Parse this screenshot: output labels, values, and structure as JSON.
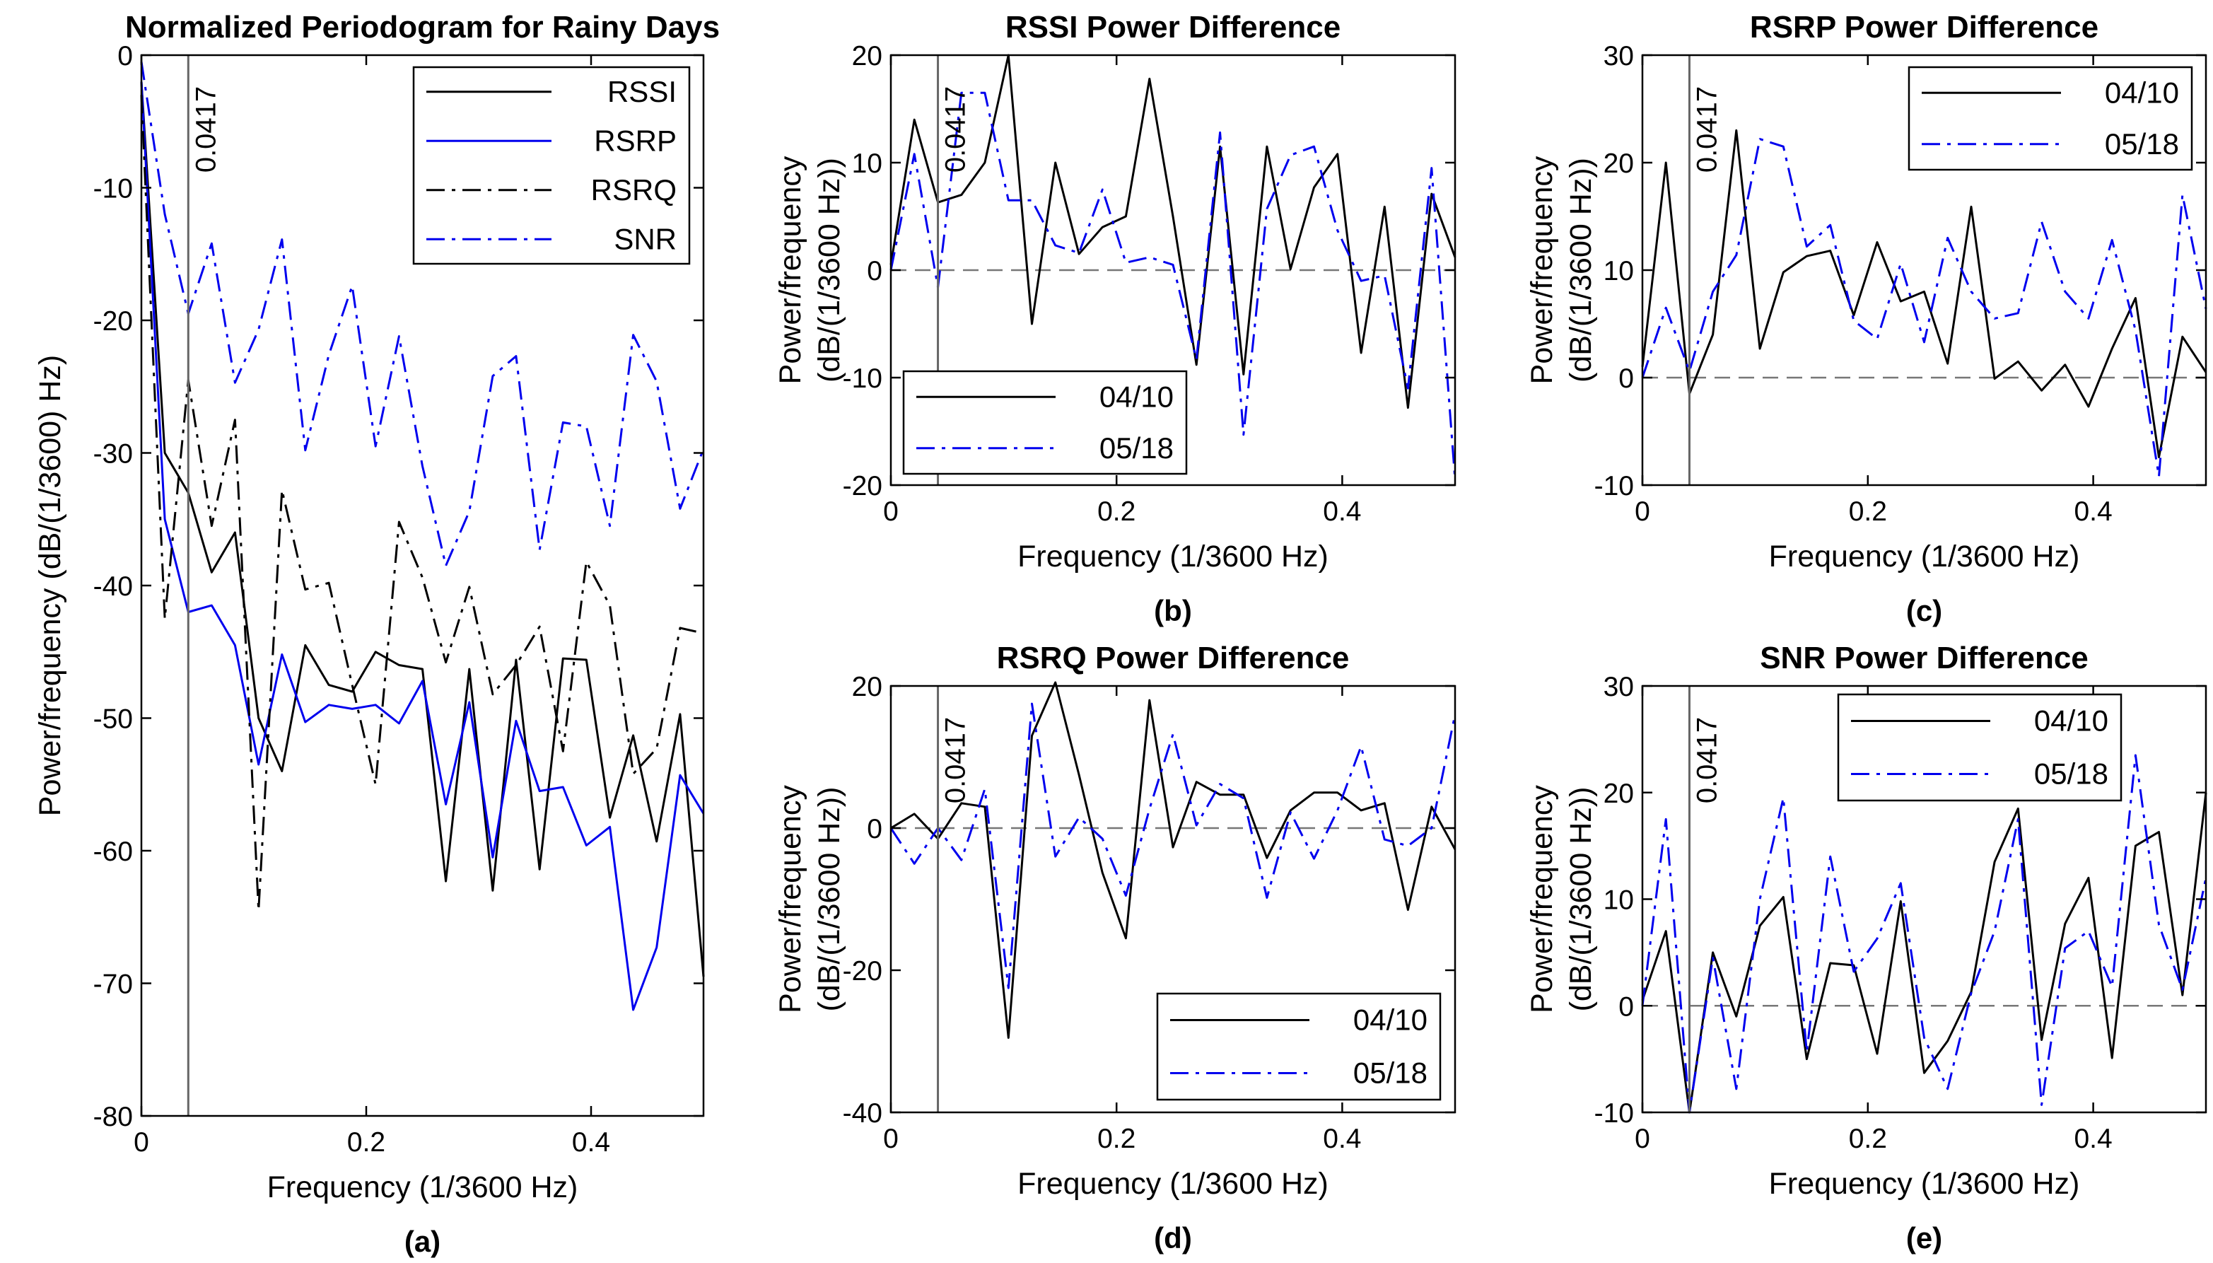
{
  "chart_data": [
    {
      "id": "a",
      "type": "line",
      "title": "Normalized Periodogram for Rainy Days",
      "caption": "(a)",
      "xlabel": "Frequency (1/3600 Hz)",
      "ylabel": "Power/frequency (dB/(1/3600) Hz)",
      "xlim": [
        0,
        0.5
      ],
      "ylim": [
        -80,
        0
      ],
      "xticks": [
        0,
        0.2,
        0.4
      ],
      "yticks": [
        0,
        -10,
        -20,
        -30,
        -40,
        -50,
        -60,
        -70,
        -80
      ],
      "vline": 0.0417,
      "vline_label": "0.0417",
      "zero_line": false,
      "legend": "top-right",
      "x": [
        0,
        0.0208,
        0.0417,
        0.0625,
        0.0833,
        0.1042,
        0.125,
        0.1458,
        0.1667,
        0.1875,
        0.2083,
        0.2292,
        0.25,
        0.2708,
        0.2917,
        0.3125,
        0.3333,
        0.3542,
        0.375,
        0.3958,
        0.4167,
        0.4375,
        0.4583,
        0.4792,
        0.5
      ],
      "series": [
        {
          "name": "RSSI",
          "color": "#000000",
          "dash": "solid",
          "values": [
            -2,
            -30,
            -33,
            -39,
            -36,
            -50,
            -54,
            -44.5,
            -47.5,
            -48,
            -45,
            -46,
            -46.3,
            -62.3,
            -46.3,
            -63,
            -45.6,
            -61.4,
            -45.5,
            -45.6,
            -57.5,
            -51.3,
            -59.3,
            -49.7,
            -69.5
          ]
        },
        {
          "name": "RSRP",
          "color": "#0000ee",
          "dash": "solid",
          "values": [
            -2,
            -35,
            -42,
            -41.5,
            -44.5,
            -53.5,
            -45.2,
            -50.3,
            -49,
            -49.3,
            -49,
            -50.4,
            -47.2,
            -56.5,
            -48.8,
            -60.5,
            -50.2,
            -55.5,
            -55.2,
            -59.6,
            -58.2,
            -72,
            -67.3,
            -54.3,
            -57.2
          ]
        },
        {
          "name": "RSRQ",
          "color": "#000000",
          "dash": "dashdot",
          "values": [
            -3,
            -42.5,
            -24.5,
            -35.5,
            -27.5,
            -64.5,
            -32.8,
            -40.3,
            -39.8,
            -47.5,
            -55,
            -35.2,
            -39.4,
            -45.8,
            -40.1,
            -48.2,
            -46,
            -43.1,
            -52.5,
            -38.2,
            -41.5,
            -54.2,
            -52.3,
            -43.2,
            -43.6
          ]
        },
        {
          "name": "SNR",
          "color": "#0000ee",
          "dash": "dashdot",
          "values": [
            -0.5,
            -12,
            -19.5,
            -14.2,
            -24.7,
            -20.7,
            -13.9,
            -29.8,
            -22.6,
            -17.4,
            -29.5,
            -21.2,
            -31,
            -38.5,
            -34.4,
            -24.2,
            -22.7,
            -37.3,
            -27.7,
            -28,
            -35.5,
            -21.1,
            -24.6,
            -34.2,
            -29.7
          ]
        }
      ]
    },
    {
      "id": "b",
      "type": "line",
      "title": "RSSI Power Difference",
      "caption": "(b)",
      "xlabel": "Frequency (1/3600 Hz)",
      "ylabel": "Power/frequency\n(dB/(1/3600 Hz))",
      "xlim": [
        0,
        0.5
      ],
      "ylim": [
        -20,
        20
      ],
      "xticks": [
        0,
        0.2,
        0.4
      ],
      "yticks": [
        20,
        10,
        0,
        -10,
        -20
      ],
      "vline": 0.0417,
      "vline_label": "0.0417",
      "zero_line": true,
      "legend": "bottom-left",
      "x": [
        0,
        0.0208,
        0.0417,
        0.0625,
        0.0833,
        0.1042,
        0.125,
        0.1458,
        0.1667,
        0.1875,
        0.2083,
        0.2292,
        0.25,
        0.2708,
        0.2917,
        0.3125,
        0.3333,
        0.3542,
        0.375,
        0.3958,
        0.4167,
        0.4375,
        0.4583,
        0.4792,
        0.5
      ],
      "series": [
        {
          "name": "04/10",
          "color": "#000000",
          "dash": "solid",
          "values": [
            0.5,
            14,
            6.3,
            7,
            10,
            20,
            -5,
            10,
            1.5,
            4,
            5,
            17.8,
            5,
            -8.8,
            11.5,
            -9.7,
            11.5,
            0.1,
            7.7,
            10.8,
            -7.7,
            5.9,
            -12.8,
            7.1,
            1.2
          ]
        },
        {
          "name": "05/18",
          "color": "#0000ee",
          "dash": "dashdot",
          "values": [
            0,
            10.8,
            -1.6,
            16.5,
            16.5,
            6.5,
            6.5,
            2.3,
            1.6,
            7.5,
            0.7,
            1.2,
            0.5,
            -8.3,
            12.8,
            -15.3,
            5.7,
            10.7,
            11.5,
            3.7,
            -1,
            -0.5,
            -11,
            9.5,
            -19.5
          ]
        }
      ]
    },
    {
      "id": "c",
      "type": "line",
      "title": "RSRP Power Difference",
      "caption": "(c)",
      "xlabel": "Frequency (1/3600 Hz)",
      "ylabel": "Power/frequency\n(dB/(1/3600 Hz))",
      "xlim": [
        0,
        0.5
      ],
      "ylim": [
        -10,
        30
      ],
      "xticks": [
        0,
        0.2,
        0.4
      ],
      "yticks": [
        30,
        20,
        10,
        0,
        -10
      ],
      "vline": 0.0417,
      "vline_label": "0.0417",
      "zero_line": true,
      "legend": "top-right",
      "x": [
        0,
        0.0208,
        0.0417,
        0.0625,
        0.0833,
        0.1042,
        0.125,
        0.1458,
        0.1667,
        0.1875,
        0.2083,
        0.2292,
        0.25,
        0.2708,
        0.2917,
        0.3125,
        0.3333,
        0.3542,
        0.375,
        0.3958,
        0.4167,
        0.4375,
        0.4583,
        0.4792,
        0.5
      ],
      "series": [
        {
          "name": "04/10",
          "color": "#000000",
          "dash": "solid",
          "values": [
            1,
            20,
            -1.5,
            4,
            23,
            2.7,
            9.8,
            11.3,
            11.8,
            5.8,
            12.6,
            7.1,
            8,
            1.3,
            15.9,
            -0.1,
            1.5,
            -1.2,
            1.2,
            -2.7,
            2.7,
            7.4,
            -7.4,
            3.8,
            0.5
          ]
        },
        {
          "name": "05/18",
          "color": "#0000ee",
          "dash": "dashdot",
          "values": [
            0,
            6.5,
            0.6,
            8,
            11.4,
            22.2,
            21.5,
            12.2,
            14.2,
            5.3,
            3.6,
            10.6,
            3.3,
            13,
            8,
            5.5,
            6,
            14.5,
            8,
            5.5,
            12.8,
            4.4,
            -9.2,
            17,
            6.4
          ]
        }
      ]
    },
    {
      "id": "d",
      "type": "line",
      "title": "RSRQ Power Difference",
      "caption": "(d)",
      "xlabel": "Frequency (1/3600 Hz)",
      "ylabel": "Power/frequency\n(dB/(1/3600 Hz))",
      "xlim": [
        0,
        0.5
      ],
      "ylim": [
        -40,
        20
      ],
      "xticks": [
        0,
        0.2,
        0.4
      ],
      "yticks": [
        20,
        0,
        -20,
        -40
      ],
      "vline": 0.0417,
      "vline_label": "0.0417",
      "zero_line": true,
      "legend": "bottom-right",
      "x": [
        0,
        0.0208,
        0.0417,
        0.0625,
        0.0833,
        0.1042,
        0.125,
        0.1458,
        0.1667,
        0.1875,
        0.2083,
        0.2292,
        0.25,
        0.2708,
        0.2917,
        0.3125,
        0.3333,
        0.3542,
        0.375,
        0.3958,
        0.4167,
        0.4375,
        0.4583,
        0.4792,
        0.5
      ],
      "series": [
        {
          "name": "04/10",
          "color": "#000000",
          "dash": "solid",
          "values": [
            0,
            2,
            -1.5,
            3.5,
            3,
            -29.5,
            13,
            20.5,
            7.5,
            -6.3,
            -15.5,
            18,
            -2.7,
            6.5,
            4.7,
            4.7,
            -4.2,
            2.5,
            5,
            5,
            2.5,
            3.5,
            -11.5,
            3,
            -3
          ]
        },
        {
          "name": "05/18",
          "color": "#0000ee",
          "dash": "dashdot",
          "values": [
            0,
            -5,
            0,
            -4.5,
            5.5,
            -22.5,
            17.5,
            -4,
            1.5,
            -1.5,
            -9.5,
            2.7,
            13.2,
            0.4,
            6.2,
            4.2,
            -9.8,
            2.2,
            -4.3,
            2.5,
            11.5,
            -1.6,
            -2.5,
            0,
            16
          ]
        }
      ]
    },
    {
      "id": "e",
      "type": "line",
      "title": "SNR Power Difference",
      "caption": "(e)",
      "xlabel": "Frequency (1/3600 Hz)",
      "ylabel": "Power/frequency\n(dB/(1/3600 Hz))",
      "xlim": [
        0,
        0.5
      ],
      "ylim": [
        -10,
        30
      ],
      "xticks": [
        0,
        0.2,
        0.4
      ],
      "yticks": [
        30,
        20,
        10,
        0,
        -10
      ],
      "vline": 0.0417,
      "vline_label": "0.0417",
      "zero_line": true,
      "legend": "top-right",
      "x": [
        0,
        0.0208,
        0.0417,
        0.0625,
        0.0833,
        0.1042,
        0.125,
        0.1458,
        0.1667,
        0.1875,
        0.2083,
        0.2292,
        0.25,
        0.2708,
        0.2917,
        0.3125,
        0.3333,
        0.3542,
        0.375,
        0.3958,
        0.4167,
        0.4375,
        0.4583,
        0.4792,
        0.5
      ],
      "series": [
        {
          "name": "04/10",
          "color": "#000000",
          "dash": "solid",
          "values": [
            0.5,
            7,
            -10,
            5,
            -1,
            7.5,
            10.2,
            -5,
            4,
            3.8,
            -4.5,
            9.8,
            -6.3,
            -3.3,
            1.3,
            13.5,
            18.5,
            -3.2,
            7.7,
            12,
            -4.9,
            15,
            16.3,
            1,
            20
          ]
        },
        {
          "name": "05/18",
          "color": "#0000ee",
          "dash": "dashdot",
          "values": [
            0,
            17.5,
            -10,
            4.5,
            -7.8,
            10,
            19.5,
            -4.3,
            14,
            3.2,
            6.3,
            11.5,
            -3,
            -7.8,
            1.2,
            7,
            17.5,
            -9.3,
            5.4,
            7,
            1.8,
            23.5,
            7.6,
            1.5,
            12
          ]
        }
      ]
    }
  ]
}
